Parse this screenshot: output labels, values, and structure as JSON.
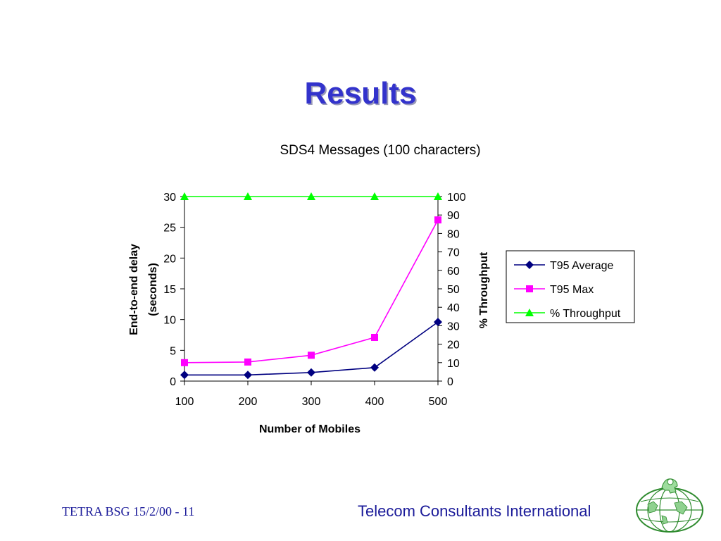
{
  "slide": {
    "title": "Results",
    "footer_left": "TETRA BSG 15/2/00 - 11",
    "footer_right": "Telecom Consultants International",
    "logo_icon": "globe-lion-logo"
  },
  "chart_data": {
    "type": "line",
    "title": "SDS4 Messages (100 characters)",
    "xlabel": "Number of Mobiles",
    "ylabel_lines": [
      "End-to-end delay",
      "(seconds)"
    ],
    "y2label": "% Throughput",
    "x": [
      100,
      200,
      300,
      400,
      500
    ],
    "ylim": [
      0,
      30
    ],
    "yticks": [
      0,
      5,
      10,
      15,
      20,
      25,
      30
    ],
    "y2lim": [
      0,
      100
    ],
    "y2ticks": [
      0,
      10,
      20,
      30,
      40,
      50,
      60,
      70,
      80,
      90,
      100
    ],
    "grid": false,
    "legend_position": "right",
    "series": [
      {
        "name": "T95 Average",
        "axis": "left",
        "marker": "diamond",
        "color": "#000080",
        "values": [
          1.0,
          1.0,
          1.4,
          2.2,
          9.6
        ]
      },
      {
        "name": "T95 Max",
        "axis": "left",
        "marker": "square",
        "color": "#ff00ff",
        "values": [
          3.0,
          3.1,
          4.2,
          7.1,
          26.2
        ]
      },
      {
        "name": "% Throughput",
        "axis": "right",
        "marker": "triangle",
        "color": "#00ff00",
        "values": [
          100,
          100,
          100,
          100,
          100
        ]
      }
    ]
  }
}
